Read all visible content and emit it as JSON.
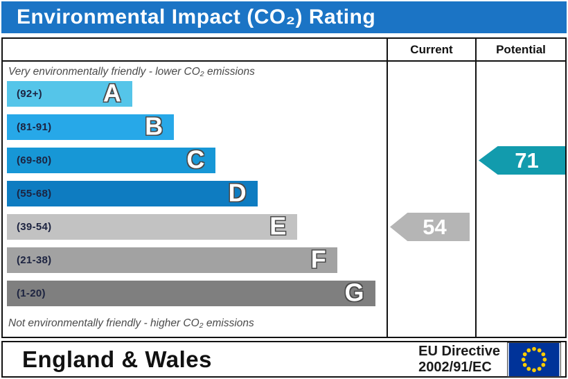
{
  "title": "Environmental Impact (CO₂) Rating",
  "columns": {
    "current": "Current",
    "potential": "Potential"
  },
  "captions": {
    "top": "Very environmentally friendly - lower CO₂ emissions",
    "bottom": "Not environmentally friendly - higher CO₂ emissions"
  },
  "bands": [
    {
      "letter": "A",
      "range": "(92+)",
      "color": "#55C5E9",
      "width_pct": 33
    },
    {
      "letter": "B",
      "range": "(81-91)",
      "color": "#27A8E8",
      "width_pct": 44
    },
    {
      "letter": "C",
      "range": "(69-80)",
      "color": "#1797D6",
      "width_pct": 55
    },
    {
      "letter": "D",
      "range": "(55-68)",
      "color": "#0E7CC1",
      "width_pct": 66
    },
    {
      "letter": "E",
      "range": "(39-54)",
      "color": "#C2C2C2",
      "width_pct": 76.5
    },
    {
      "letter": "F",
      "range": "(21-38)",
      "color": "#A2A2A2",
      "width_pct": 87
    },
    {
      "letter": "G",
      "range": "(1-20)",
      "color": "#7F7F7F",
      "width_pct": 97
    }
  ],
  "arrows": {
    "current_value": "54",
    "potential_value": "71"
  },
  "footer": {
    "region": "England & Wales",
    "directive_line1": "EU Directive",
    "directive_line2": "2002/91/EC"
  },
  "colors": {
    "title_bar": "#1B74C5",
    "current_arrow": "#B5B5B5",
    "potential_arrow": "#129BAD",
    "eu_flag_blue": "#003399",
    "eu_flag_star": "#FFCC00"
  },
  "chart_data": {
    "type": "bar",
    "title": "Environmental Impact (CO₂) Rating",
    "categories": [
      "A",
      "B",
      "C",
      "D",
      "E",
      "F",
      "G"
    ],
    "band_ranges": [
      "92+",
      "81-91",
      "69-80",
      "55-68",
      "39-54",
      "21-38",
      "1-20"
    ],
    "values": [
      33,
      44,
      55,
      66,
      76.5,
      87,
      97
    ],
    "series": [
      {
        "name": "Current",
        "value": 54,
        "band": "E"
      },
      {
        "name": "Potential",
        "value": 71,
        "band": "C"
      }
    ],
    "scale_min": 1,
    "scale_max": 100,
    "top_note": "Very environmentally friendly - lower CO₂ emissions",
    "bottom_note": "Not environmentally friendly - higher CO₂ emissions",
    "footer": "England & Wales — EU Directive 2002/91/EC"
  }
}
